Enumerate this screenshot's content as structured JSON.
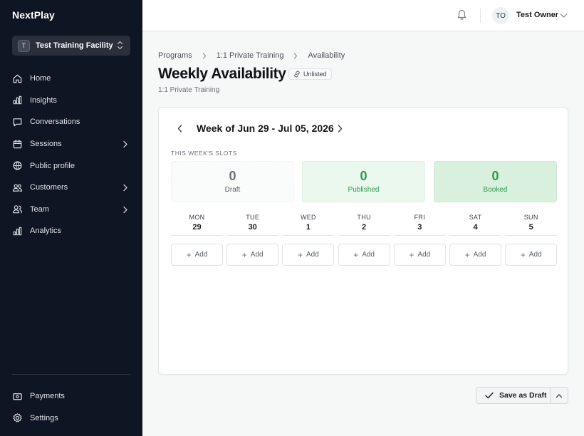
{
  "sidebar": {
    "brand": "NextPlay",
    "facility": {
      "initial": "T",
      "name": "Test Training Facility"
    },
    "items": [
      {
        "label": "Home",
        "icon": "home-icon"
      },
      {
        "label": "Insights",
        "icon": "bar-chart-icon"
      },
      {
        "label": "Conversations",
        "icon": "chat-icon"
      },
      {
        "label": "Sessions",
        "icon": "calendar-icon",
        "expandable": true
      },
      {
        "label": "Public profile",
        "icon": "globe-icon"
      },
      {
        "label": "Customers",
        "icon": "users-icon",
        "expandable": true
      },
      {
        "label": "Team",
        "icon": "team-icon",
        "expandable": true
      },
      {
        "label": "Analytics",
        "icon": "analytics-icon"
      }
    ],
    "bottom_items": [
      {
        "label": "Payments",
        "icon": "payments-icon"
      },
      {
        "label": "Settings",
        "icon": "gear-icon"
      }
    ]
  },
  "topbar": {
    "user_initials": "TO",
    "user_name": "Test Owner"
  },
  "breadcrumb": [
    "Programs",
    "1:1 Private Training",
    "Availability"
  ],
  "page": {
    "title": "Weekly Availability",
    "badge": "Unlisted",
    "subtitle": "1:1 Private Training"
  },
  "week": {
    "label": "Week of Jun 29 - Jul 05, 2026",
    "slots_heading": "THIS WEEK'S SLOTS",
    "stats": {
      "draft": {
        "count": "0",
        "label": "Draft"
      },
      "published": {
        "count": "0",
        "label": "Published"
      },
      "booked": {
        "count": "0",
        "label": "Booked"
      }
    },
    "days": [
      {
        "name": "MON",
        "date": "29"
      },
      {
        "name": "TUE",
        "date": "30"
      },
      {
        "name": "WED",
        "date": "1"
      },
      {
        "name": "THU",
        "date": "2"
      },
      {
        "name": "FRI",
        "date": "3"
      },
      {
        "name": "SAT",
        "date": "4"
      },
      {
        "name": "SUN",
        "date": "5"
      }
    ],
    "add_label": "Add"
  },
  "footer": {
    "save_label": "Save as Draft"
  },
  "colors": {
    "sidebar_bg": "#0f1623",
    "accent_green": "#2d9a4c",
    "published_bg": "#ebf8ee",
    "booked_bg": "#d9f0df"
  }
}
